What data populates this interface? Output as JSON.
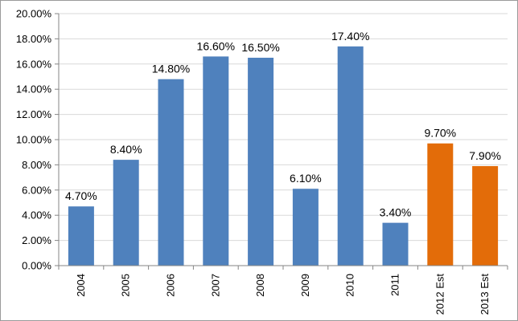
{
  "chart_data": {
    "type": "bar",
    "categories": [
      "2004",
      "2005",
      "2006",
      "2007",
      "2008",
      "2009",
      "2010",
      "2011",
      "2012 Est",
      "2013 Est"
    ],
    "values": [
      4.7,
      8.4,
      14.8,
      16.6,
      16.5,
      6.1,
      17.4,
      3.4,
      9.7,
      7.9
    ],
    "data_labels": [
      "4.70%",
      "8.40%",
      "14.80%",
      "16.60%",
      "16.50%",
      "6.10%",
      "17.40%",
      "3.40%",
      "9.70%",
      "7.90%"
    ],
    "bar_kind": [
      "actual",
      "actual",
      "actual",
      "actual",
      "actual",
      "actual",
      "actual",
      "actual",
      "estimate",
      "estimate"
    ],
    "colors": {
      "actual": "#4f81bd",
      "estimate": "#e36c09",
      "grid": "#d9d9d9",
      "axis": "#868686"
    },
    "ylim": [
      0,
      20
    ],
    "y_ticks": [
      0,
      2,
      4,
      6,
      8,
      10,
      12,
      14,
      16,
      18,
      20
    ],
    "y_tick_labels": [
      "0.00%",
      "2.00%",
      "4.00%",
      "6.00%",
      "8.00%",
      "10.00%",
      "12.00%",
      "14.00%",
      "16.00%",
      "18.00%",
      "20.00%"
    ],
    "grid": true,
    "legend": "none",
    "title": "",
    "xlabel": "",
    "ylabel": ""
  }
}
